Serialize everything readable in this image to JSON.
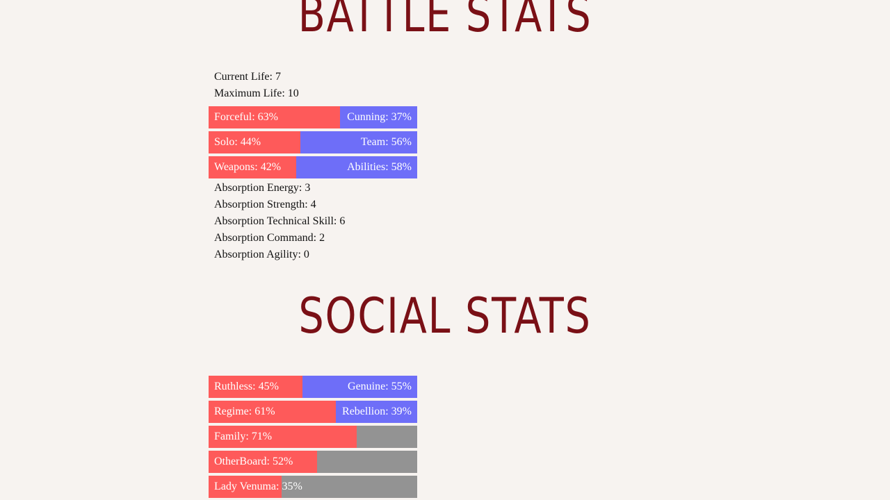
{
  "battle": {
    "title": "BATTLE STATS",
    "lines": [
      "Current Life: 7",
      "Maximum Life: 10"
    ],
    "bars": [
      {
        "left_label": "Forceful: 63%",
        "left_value": 63,
        "right_label": "Cunning: 37%",
        "right_value": 37
      },
      {
        "left_label": "Solo: 44%",
        "left_value": 44,
        "right_label": "Team: 56%",
        "right_value": 56
      },
      {
        "left_label": "Weapons: 42%",
        "left_value": 42,
        "right_label": "Abilities: 58%",
        "right_value": 58
      }
    ],
    "absorption": [
      "Absorption Energy: 3",
      "Absorption Strength: 4",
      "Absorption Technical Skill: 6",
      "Absorption Command: 2",
      "Absorption Agility: 0"
    ]
  },
  "social": {
    "title": "SOCIAL STATS",
    "bars": [
      {
        "left_label": "Ruthless: 45%",
        "left_value": 45,
        "right_label": "Genuine: 55%",
        "right_value": 55
      },
      {
        "left_label": "Regime: 61%",
        "left_value": 61,
        "right_label": "Rebellion: 39%",
        "right_value": 39
      },
      {
        "left_label": "Family: 71%",
        "left_value": 71
      },
      {
        "left_label": "OtherBoard: 52%",
        "left_value": 52
      },
      {
        "left_label": "Lady Venuma: 35%",
        "left_value": 35
      }
    ]
  }
}
